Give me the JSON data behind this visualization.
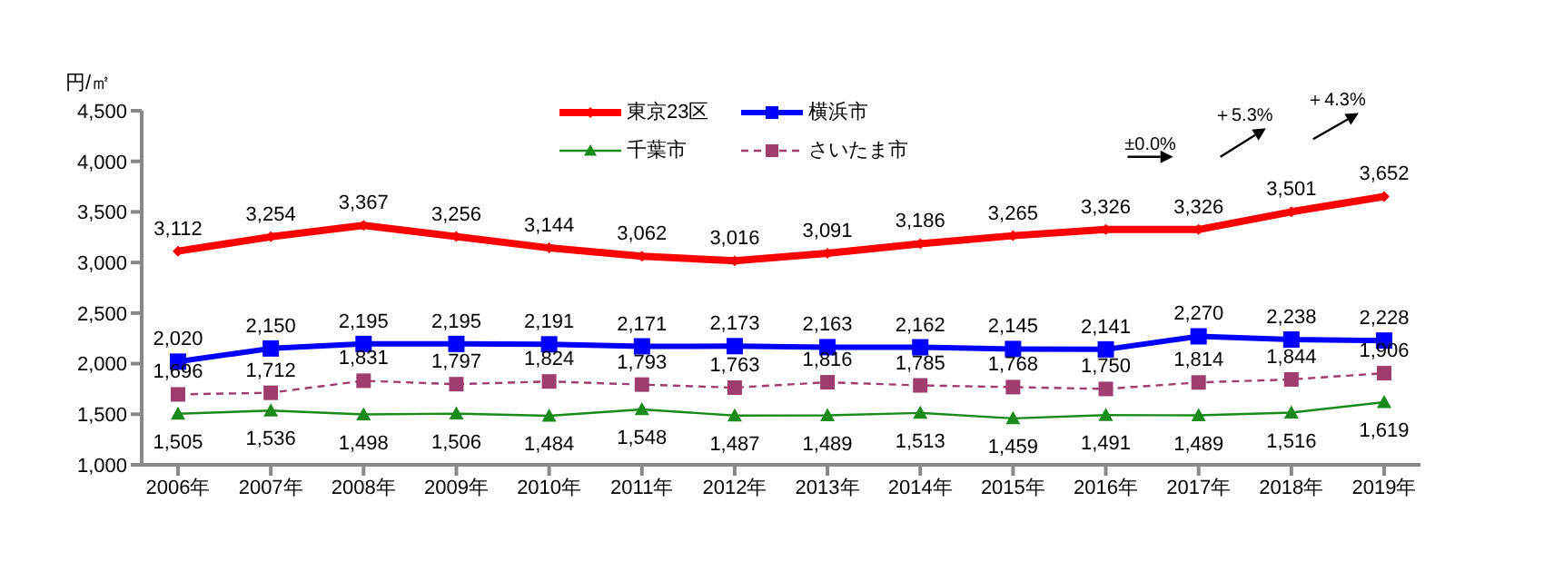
{
  "chart_data": {
    "type": "line",
    "ylabel": "円/㎡",
    "categories": [
      "2006年",
      "2007年",
      "2008年",
      "2009年",
      "2010年",
      "2011年",
      "2012年",
      "2013年",
      "2014年",
      "2015年",
      "2016年",
      "2017年",
      "2018年",
      "2019年"
    ],
    "series": [
      {
        "name": "東京23区",
        "color": "#ff0000",
        "marker": "diamond",
        "line_style": "solid",
        "values": [
          3112,
          3254,
          3367,
          3256,
          3144,
          3062,
          3016,
          3091,
          3186,
          3265,
          3326,
          3326,
          3501,
          3652
        ],
        "value_labels": [
          "3,112",
          "3,254",
          "3,367",
          "3,256",
          "3,144",
          "3,062",
          "3,016",
          "3,091",
          "3,186",
          "3,265",
          "3,326",
          "3,326",
          "3,501",
          "3,652"
        ]
      },
      {
        "name": "横浜市",
        "color": "#0000ff",
        "marker": "square",
        "line_style": "solid",
        "values": [
          2020,
          2150,
          2195,
          2195,
          2191,
          2171,
          2173,
          2163,
          2162,
          2145,
          2141,
          2270,
          2238,
          2228
        ],
        "value_labels": [
          "2,020",
          "2,150",
          "2,195",
          "2,195",
          "2,191",
          "2,171",
          "2,173",
          "2,163",
          "2,162",
          "2,145",
          "2,141",
          "2,270",
          "2,238",
          "2,228"
        ]
      },
      {
        "name": "千葉市",
        "color": "#1a8a1a",
        "marker": "triangle",
        "line_style": "solid",
        "values": [
          1505,
          1536,
          1498,
          1506,
          1484,
          1548,
          1487,
          1489,
          1513,
          1459,
          1491,
          1489,
          1516,
          1619
        ],
        "value_labels": [
          "1,505",
          "1,536",
          "1,498",
          "1,506",
          "1,484",
          "1,548",
          "1,487",
          "1,489",
          "1,513",
          "1,459",
          "1,491",
          "1,489",
          "1,516",
          "1,619"
        ]
      },
      {
        "name": "さいたま市",
        "color": "#9e3d6e",
        "marker": "square",
        "line_style": "dashed",
        "values": [
          1696,
          1712,
          1831,
          1797,
          1824,
          1793,
          1763,
          1816,
          1785,
          1768,
          1750,
          1814,
          1844,
          1906
        ],
        "value_labels": [
          "1,696",
          "1,712",
          "1,831",
          "1,797",
          "1,824",
          "1,793",
          "1,763",
          "1,816",
          "1,785",
          "1,768",
          "1,750",
          "1,814",
          "1,844",
          "1,906"
        ]
      }
    ],
    "ylim": [
      1000,
      4500
    ],
    "yticks": [
      {
        "value": 1000,
        "label": "1,000"
      },
      {
        "value": 1500,
        "label": "1,500"
      },
      {
        "value": 2000,
        "label": "2,000"
      },
      {
        "value": 2500,
        "label": "2,500"
      },
      {
        "value": 3000,
        "label": "3,000"
      },
      {
        "value": 3500,
        "label": "3,500"
      },
      {
        "value": 4000,
        "label": "4,000"
      },
      {
        "value": 4500,
        "label": "4,500"
      }
    ],
    "grid": false,
    "legend": "top",
    "annotations": [
      "±0.0%",
      "＋5.3%",
      "＋4.3%"
    ]
  }
}
